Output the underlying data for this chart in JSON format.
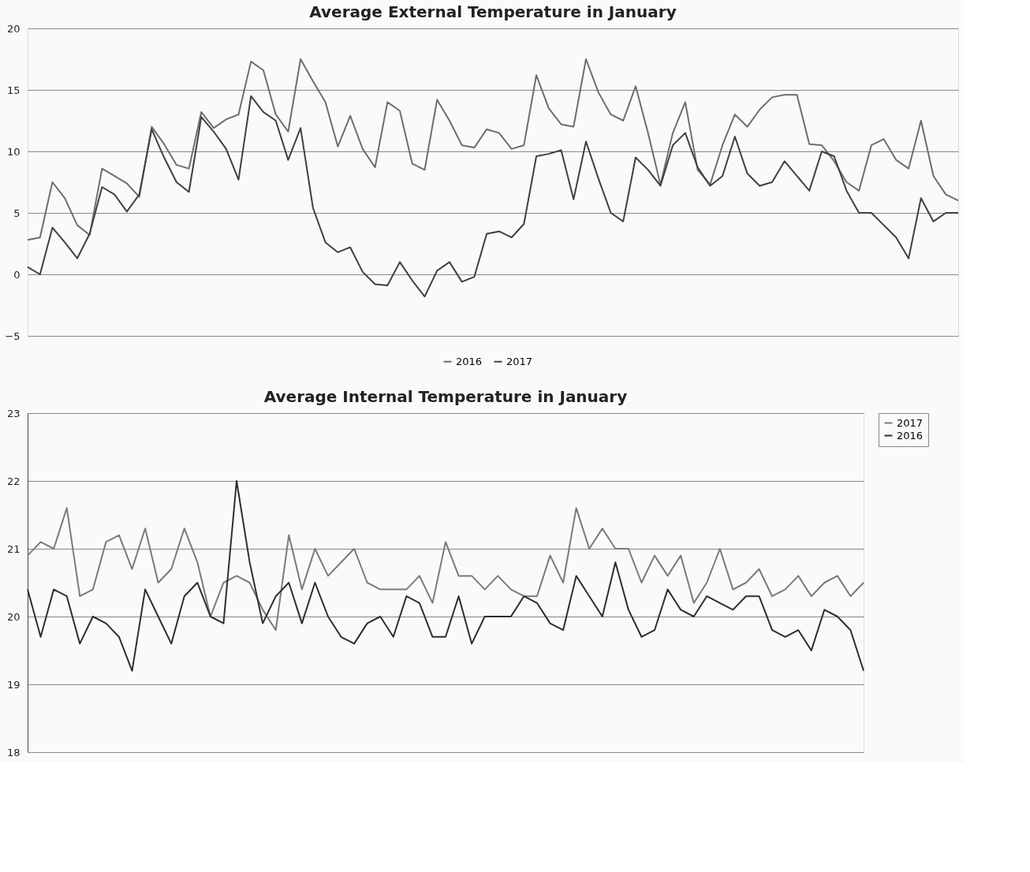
{
  "chart_data": [
    {
      "type": "line",
      "title": "Average External Temperature in January",
      "categories": [
        null,
        null,
        null,
        null,
        null,
        null,
        null,
        null,
        null,
        null,
        null,
        null,
        null,
        null,
        null,
        null,
        null,
        null,
        null,
        null,
        null,
        null,
        null,
        null,
        null,
        null,
        null,
        null,
        null,
        null,
        null,
        null,
        null,
        null,
        null,
        null,
        null,
        null,
        null,
        null,
        null,
        null,
        null,
        null,
        null,
        null,
        null,
        null,
        null,
        null,
        null,
        null,
        null,
        null,
        null,
        null,
        null,
        null,
        null,
        null,
        null,
        null,
        null,
        null,
        null,
        null,
        null,
        null,
        null,
        null,
        null,
        null,
        null,
        null,
        null,
        null
      ],
      "series": [
        {
          "name": "2016",
          "color": "#6e6e6e",
          "values": [
            2.8,
            3.0,
            7.5,
            6.2,
            4.0,
            3.2,
            8.6,
            8.0,
            7.4,
            6.3,
            12.0,
            10.6,
            8.9,
            8.6,
            13.2,
            11.9,
            12.6,
            13.0,
            17.3,
            16.6,
            13.0,
            11.6,
            17.5,
            15.7,
            14.0,
            10.4,
            12.9,
            10.2,
            8.7,
            14.0,
            13.3,
            9.0,
            8.5,
            14.2,
            12.5,
            10.5,
            10.3,
            11.8,
            11.5,
            10.2,
            10.5,
            16.2,
            13.5,
            12.2,
            12.0,
            17.5,
            14.8,
            13.0,
            12.5,
            15.3,
            11.5,
            7.3,
            11.5,
            14.0,
            8.5,
            7.3,
            10.5,
            13.0,
            12.0,
            13.4,
            14.4,
            14.6,
            14.6,
            10.6,
            10.5,
            9.2,
            7.5,
            6.8,
            10.5,
            11.0,
            9.3,
            8.6,
            12.5,
            8.0,
            6.5,
            6.0
          ]
        },
        {
          "name": "2017",
          "color": "#404040",
          "values": [
            0.6,
            0.0,
            3.8,
            2.6,
            1.3,
            3.3,
            7.1,
            6.5,
            5.1,
            6.5,
            11.8,
            9.5,
            7.5,
            6.7,
            12.8,
            11.6,
            10.2,
            7.7,
            14.5,
            13.2,
            12.5,
            9.3,
            11.9,
            5.4,
            2.6,
            1.8,
            2.2,
            0.2,
            -0.8,
            -0.9,
            1.0,
            -0.5,
            -1.8,
            0.3,
            1.0,
            -0.6,
            -0.2,
            3.3,
            3.5,
            3.0,
            4.1,
            9.6,
            9.8,
            10.1,
            6.1,
            10.8,
            7.8,
            5.0,
            4.3,
            9.5,
            8.5,
            7.2,
            10.5,
            11.5,
            8.7,
            7.2,
            8.0,
            11.2,
            8.2,
            7.2,
            7.5,
            9.2,
            8.0,
            6.8,
            10.0,
            9.6,
            6.8,
            5.0,
            5.0,
            4.0,
            3.0,
            1.3,
            6.2,
            4.3,
            5.0,
            5.0
          ]
        }
      ],
      "ylim": [
        -5,
        20
      ],
      "yticks": [
        -5,
        0,
        5,
        10,
        15,
        20
      ],
      "grid": "y",
      "legend": "bottom",
      "tick_labels": "y"
    },
    {
      "type": "line",
      "title": "Average Internal Temperature in January",
      "categories": [
        null,
        null,
        null,
        null,
        null,
        null,
        null,
        null,
        null,
        null,
        null,
        null,
        null,
        null,
        null,
        null,
        null,
        null,
        null,
        null,
        null,
        null,
        null,
        null,
        null,
        null,
        null,
        null,
        null,
        null,
        null,
        null,
        null,
        null,
        null,
        null,
        null,
        null,
        null,
        null,
        null,
        null,
        null,
        null,
        null,
        null,
        null,
        null,
        null,
        null,
        null,
        null,
        null,
        null,
        null,
        null,
        null,
        null,
        null,
        null,
        null,
        null,
        null,
        null,
        null
      ],
      "series": [
        {
          "name": "2017",
          "color": "#7a7a7a",
          "values": [
            20.9,
            21.1,
            21.0,
            21.6,
            20.3,
            20.4,
            21.1,
            21.2,
            20.7,
            21.3,
            20.5,
            20.7,
            21.3,
            20.8,
            20.0,
            20.5,
            20.6,
            20.5,
            20.1,
            19.8,
            21.2,
            20.4,
            21.0,
            20.6,
            20.8,
            21.0,
            20.5,
            20.4,
            20.4,
            20.4,
            20.6,
            20.2,
            21.1,
            20.6,
            20.6,
            20.4,
            20.6,
            20.4,
            20.3,
            20.3,
            20.9,
            20.5,
            21.6,
            21.0,
            21.3,
            21.0,
            21.0,
            20.5,
            20.9,
            20.6,
            20.9,
            20.2,
            20.5,
            21.0,
            20.4,
            20.5,
            20.7,
            20.3,
            20.4,
            20.6,
            20.3,
            20.5,
            20.6,
            20.3,
            20.5
          ]
        },
        {
          "name": "2016",
          "color": "#2e2e2e",
          "values": [
            20.4,
            19.7,
            20.4,
            20.3,
            19.6,
            20.0,
            19.9,
            19.7,
            19.2,
            20.4,
            20.0,
            19.6,
            20.3,
            20.5,
            20.0,
            19.9,
            22.0,
            20.8,
            19.9,
            20.3,
            20.5,
            19.9,
            20.5,
            20.0,
            19.7,
            19.6,
            19.9,
            20.0,
            19.7,
            20.3,
            20.2,
            19.7,
            19.7,
            20.3,
            19.6,
            20.0,
            20.0,
            20.0,
            20.3,
            20.2,
            19.9,
            19.8,
            20.6,
            20.3,
            20.0,
            20.8,
            20.1,
            19.7,
            19.8,
            20.4,
            20.1,
            20.0,
            20.3,
            20.2,
            20.1,
            20.3,
            20.3,
            19.8,
            19.7,
            19.8,
            19.5,
            20.1,
            20.0,
            19.8,
            19.2
          ]
        }
      ],
      "ylim": [
        18,
        23
      ],
      "yticks": [
        18,
        19,
        20,
        21,
        22,
        23
      ],
      "grid": "y",
      "legend": "right",
      "tick_labels": "y"
    }
  ]
}
